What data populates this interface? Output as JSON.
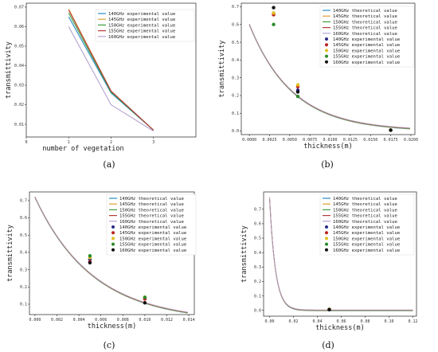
{
  "colors": {
    "140": "#2a8cc4",
    "145": "#e0a033",
    "150": "#3e9e3e",
    "155": "#b63a3a",
    "160": "#b4a2d0",
    "pt140": "#2a2a8a",
    "pt145": "#c02020",
    "pt150": "#e0c020",
    "pt155": "#2a8a2a",
    "pt160": "#111111"
  },
  "chart_data": [
    {
      "panel": "a",
      "caption": "(a)",
      "type": "line",
      "xlabel": "number of vegetation",
      "ylabel": "transmittivity",
      "xlim": [
        0,
        4
      ],
      "ylim": [
        0.0035,
        0.072
      ],
      "xticks": [
        "0",
        "1",
        "2",
        "3"
      ],
      "yticks": [
        "0.01",
        "0.02",
        "0.03",
        "0.04",
        "0.05",
        "0.06",
        "0.07"
      ],
      "x": [
        1,
        2,
        3
      ],
      "series": [
        {
          "name": "140GHz experimental value",
          "values": [
            0.065,
            0.026,
            0.007
          ]
        },
        {
          "name": "145GHz experimental value",
          "values": [
            0.069,
            0.027,
            0.007
          ]
        },
        {
          "name": "150GHz experimental value",
          "values": [
            0.067,
            0.0265,
            0.007
          ]
        },
        {
          "name": "155GHz experimental value",
          "values": [
            0.0685,
            0.027,
            0.007
          ]
        },
        {
          "name": "160GHz experimental value",
          "values": [
            0.06,
            0.02,
            0.0065
          ]
        }
      ],
      "legend": "top-right"
    },
    {
      "panel": "b",
      "caption": "(b)",
      "type": "line",
      "xlabel": "thickness(m)",
      "ylabel": "transmittivity",
      "xlim": [
        -0.001,
        0.0205
      ],
      "ylim": [
        -0.02,
        0.72
      ],
      "xticks": [
        "0.0000",
        "0.0025",
        "0.0050",
        "0.0075",
        "0.0100",
        "0.0125",
        "0.0150",
        "0.0175",
        "0.0200"
      ],
      "yticks": [
        "0.0",
        "0.1",
        "0.2",
        "0.3",
        "0.4",
        "0.5",
        "0.6",
        "0.7"
      ],
      "curve": {
        "a": 0.6,
        "k": 187,
        "x0": 0.0,
        "x1": 0.0199
      },
      "series": [
        {
          "name": "140GHz theoretical value"
        },
        {
          "name": "145GHz theoretical value"
        },
        {
          "name": "150GHz theoretical value"
        },
        {
          "name": "155GHz theoretical value"
        },
        {
          "name": "160GHz theoretical value"
        }
      ],
      "points": [
        {
          "name": "140GHz experimental value",
          "pts": [
            [
              0.003,
              0.66
            ],
            [
              0.006,
              0.23
            ],
            [
              0.0175,
              0.005
            ]
          ]
        },
        {
          "name": "145GHz experimental value",
          "pts": [
            [
              0.003,
              0.655
            ],
            [
              0.006,
              0.25
            ],
            [
              0.0175,
              0.005
            ]
          ]
        },
        {
          "name": "150GHz experimental value",
          "pts": [
            [
              0.003,
              0.665
            ],
            [
              0.006,
              0.26
            ],
            [
              0.0175,
              0.005
            ]
          ]
        },
        {
          "name": "155GHz experimental value",
          "pts": [
            [
              0.003,
              0.6
            ],
            [
              0.006,
              0.195
            ],
            [
              0.0175,
              0.005
            ]
          ]
        },
        {
          "name": "160GHz experimental value",
          "pts": [
            [
              0.003,
              0.695
            ],
            [
              0.006,
              0.22
            ],
            [
              0.0175,
              0.005
            ]
          ]
        }
      ],
      "legend": "top-right"
    },
    {
      "panel": "c",
      "caption": "(c)",
      "type": "line",
      "xlabel": "thickness(m)",
      "ylabel": "transmittivity",
      "xlim": [
        -0.0005,
        0.0145
      ],
      "ylim": [
        0.04,
        0.75
      ],
      "xticks": [
        "0.000",
        "0.002",
        "0.004",
        "0.006",
        "0.008",
        "0.010",
        "0.012",
        "0.014"
      ],
      "yticks": [
        "0.1",
        "0.2",
        "0.3",
        "0.4",
        "0.5",
        "0.6",
        "0.7"
      ],
      "curve": {
        "a": 0.72,
        "k": 190,
        "x0": 0.0,
        "x1": 0.0139
      },
      "series": [
        {
          "name": "140GHz theoretical value"
        },
        {
          "name": "145GHz theoretical value"
        },
        {
          "name": "150GHz theoretical value"
        },
        {
          "name": "155GHz theoretical value"
        },
        {
          "name": "160GHz theoretical value"
        }
      ],
      "points": [
        {
          "name": "140GHz experimental value",
          "pts": [
            [
              0.005,
              0.36
            ],
            [
              0.01,
              0.135
            ]
          ]
        },
        {
          "name": "145GHz experimental value",
          "pts": [
            [
              0.005,
              0.345
            ],
            [
              0.01,
              0.13
            ]
          ]
        },
        {
          "name": "150GHz experimental value",
          "pts": [
            [
              0.005,
              0.37
            ],
            [
              0.01,
              0.14
            ]
          ]
        },
        {
          "name": "155GHz experimental value",
          "pts": [
            [
              0.005,
              0.38
            ],
            [
              0.01,
              0.14
            ]
          ]
        },
        {
          "name": "160GHz experimental value",
          "pts": [
            [
              0.005,
              0.34
            ],
            [
              0.01,
              0.108
            ]
          ]
        }
      ],
      "legend": "top-right"
    },
    {
      "panel": "d",
      "caption": "(d)",
      "type": "line",
      "xlabel": "thickness(m)",
      "ylabel": "transmittivity",
      "xlim": [
        -0.005,
        0.123
      ],
      "ylim": [
        -0.04,
        0.82
      ],
      "xticks": [
        "0.00",
        "0.02",
        "0.04",
        "0.06",
        "0.08",
        "0.10",
        "0.12"
      ],
      "yticks": [
        "0.0",
        "0.1",
        "0.2",
        "0.3",
        "0.4",
        "0.5",
        "0.6",
        "0.7"
      ],
      "curve": {
        "a": 0.78,
        "k": 205,
        "x0": 0.0,
        "x1": 0.12
      },
      "series": [
        {
          "name": "140GHz theoretical value"
        },
        {
          "name": "145GHz theoretical value"
        },
        {
          "name": "150GHz theoretical value"
        },
        {
          "name": "155GHz theoretical value"
        },
        {
          "name": "160GHz theoretical value"
        }
      ],
      "points": [
        {
          "name": "140GHz experimental value",
          "pts": [
            [
              0.05,
              0.006
            ]
          ]
        },
        {
          "name": "145GHz experimental value",
          "pts": [
            [
              0.05,
              0.007
            ]
          ]
        },
        {
          "name": "150GHz experimental value",
          "pts": [
            [
              0.05,
              0.008
            ]
          ]
        },
        {
          "name": "155GHz experimental value",
          "pts": [
            [
              0.05,
              0.006
            ]
          ]
        },
        {
          "name": "160GHz experimental value",
          "pts": [
            [
              0.05,
              0.005
            ]
          ]
        }
      ],
      "legend": "top-right"
    }
  ]
}
